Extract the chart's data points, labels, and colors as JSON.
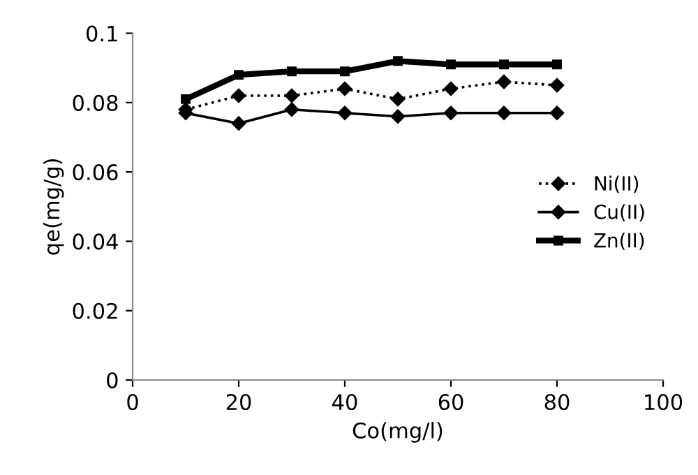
{
  "chart_data": {
    "type": "line",
    "xlabel": "Co(mg/l)",
    "ylabel": "qe(mg/g)",
    "x": [
      10,
      20,
      30,
      40,
      50,
      60,
      70,
      80
    ],
    "xlim": [
      0,
      100
    ],
    "xticks": [
      0,
      20,
      40,
      60,
      80,
      100
    ],
    "ylim": [
      0,
      0.1
    ],
    "yticks": [
      0,
      0.02,
      0.04,
      0.06,
      0.08,
      0.1
    ],
    "grid": false,
    "legend": "right",
    "marker": "diamond",
    "series": [
      {
        "name": "Ni(II)",
        "color": "#000000",
        "line_style": "dotted",
        "values": [
          0.078,
          0.082,
          0.082,
          0.084,
          0.081,
          0.084,
          0.086,
          0.085
        ]
      },
      {
        "name": "Cu(II)",
        "color": "#000000",
        "line_style": "solid",
        "values": [
          0.077,
          0.074,
          0.078,
          0.077,
          0.076,
          0.077,
          0.077,
          0.077
        ]
      },
      {
        "name": "Zn(II)",
        "color": "#000000",
        "line_style": "solid",
        "marker": "square",
        "values": [
          0.081,
          0.088,
          0.089,
          0.089,
          0.092,
          0.091,
          0.091,
          0.091
        ]
      }
    ]
  }
}
